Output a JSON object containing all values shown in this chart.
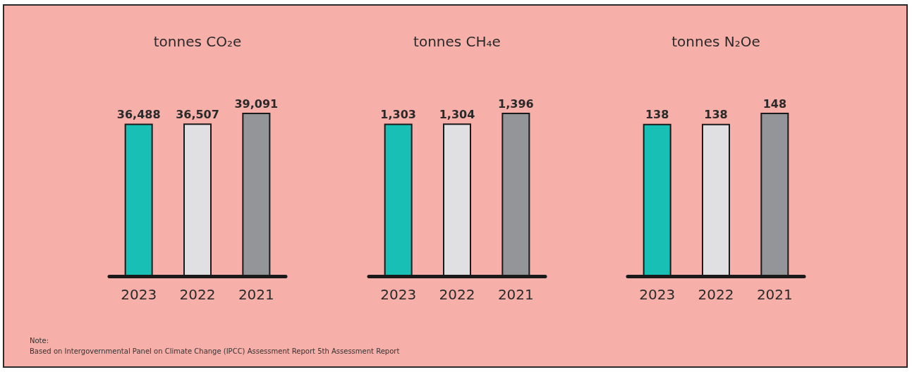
{
  "chart_data": [
    {
      "type": "bar",
      "title": "tonnes CO₂e",
      "categories": [
        "2023",
        "2022",
        "2021"
      ],
      "values": [
        36488,
        36507,
        39091
      ],
      "value_labels": [
        "36,488",
        "36,507",
        "39,091"
      ],
      "colors": [
        "#17bfb5",
        "#e0e0e2",
        "#939598"
      ],
      "tick_labels": "x",
      "annotations": [
        "Note:",
        "Based on Intergovernmental Panel on Climate Change (IPCC) Assessment Report 5th Assessment Report"
      ]
    },
    {
      "type": "bar",
      "title": "tonnes CH₄e",
      "categories": [
        "2023",
        "2022",
        "2021"
      ],
      "values": [
        1303,
        1304,
        1396
      ],
      "value_labels": [
        "1,303",
        "1,304",
        "1,396"
      ],
      "colors": [
        "#17bfb5",
        "#e0e0e2",
        "#939598"
      ],
      "tick_labels": "x"
    },
    {
      "type": "bar",
      "title": "tonnes N₂Oe",
      "categories": [
        "2023",
        "2022",
        "2021"
      ],
      "values": [
        138,
        138,
        148
      ],
      "value_labels": [
        "138",
        "138",
        "148"
      ],
      "colors": [
        "#17bfb5",
        "#e0e0e2",
        "#939598"
      ],
      "tick_labels": "x"
    }
  ]
}
